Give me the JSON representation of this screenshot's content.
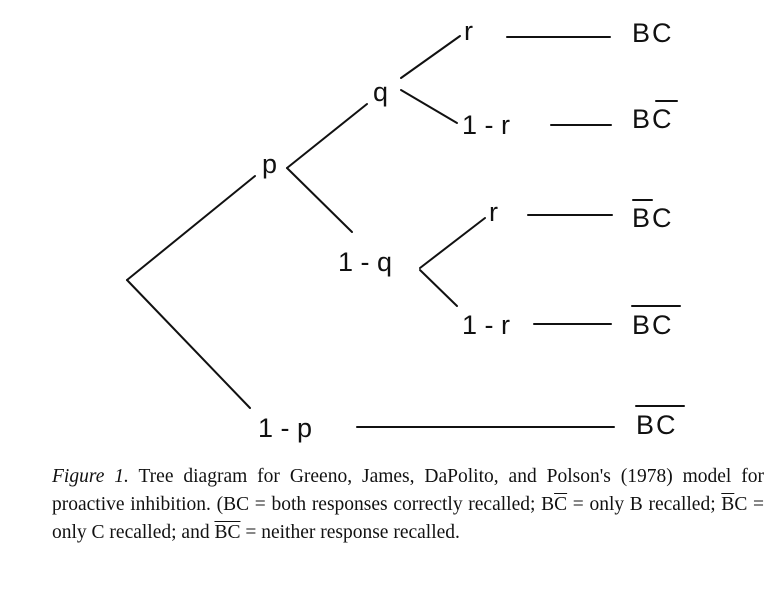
{
  "tree": {
    "nodes": {
      "p": "p",
      "one_minus_p": "1 - p",
      "q": "q",
      "one_minus_q": "1 - q",
      "r_top": "r",
      "one_minus_r_top": "1 - r",
      "r_mid": "r",
      "one_minus_r_mid": "1 - r"
    },
    "outcomes": {
      "bc": "BC",
      "b_cbar": "BC",
      "bbar_c": "BC",
      "neither_1": "BC",
      "neither_2": "BC"
    }
  },
  "caption": {
    "figure_label": "Figure 1.",
    "part1": " Tree diagram for Greeno, James, DaPolito, and Polson's (1978) model for proactive inhibition. (BC = both responses correctly recalled; B",
    "cbar": "C",
    "part2": " = only B recalled; ",
    "bbar": "B",
    "part3": "C = only C recalled; and ",
    "neither": "BC",
    "part4": " = neither response recalled."
  }
}
